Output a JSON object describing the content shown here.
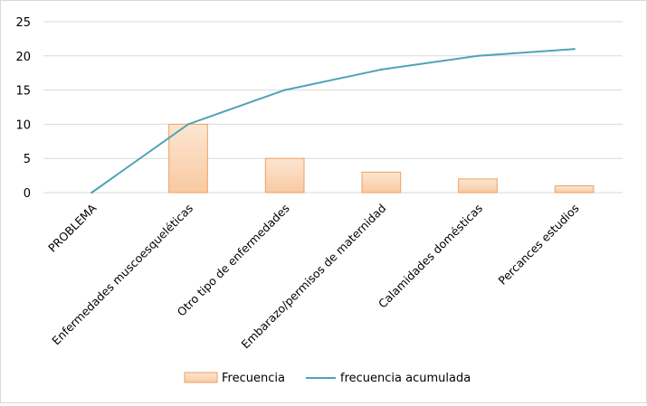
{
  "chart_data": {
    "type": "bar",
    "categories": [
      "PROBLEMA",
      "Enfermedades muscoesqueléticas",
      "Otro tipo de enfermedades",
      "Embarazo/permisos de maternidad",
      "Calamidades domésticas",
      "Percances estudios"
    ],
    "series": [
      {
        "name": "Frecuencia",
        "type": "bar",
        "values": [
          0,
          10,
          5,
          3,
          2,
          1
        ]
      },
      {
        "name": "frecuencia acumulada",
        "type": "line",
        "values": [
          0,
          10,
          15,
          18,
          20,
          21
        ]
      }
    ],
    "ylim": [
      0,
      25
    ],
    "yticks": [
      "0",
      "5",
      "10",
      "15",
      "20",
      "25"
    ],
    "grid": true,
    "legend_position": "bottom",
    "colors": {
      "bar_fill_top": "#fde6d2",
      "bar_fill_bottom": "#f8c9a2",
      "bar_stroke": "#f0a060",
      "line": "#4fa3b8",
      "grid": "#d9d9d9"
    }
  }
}
